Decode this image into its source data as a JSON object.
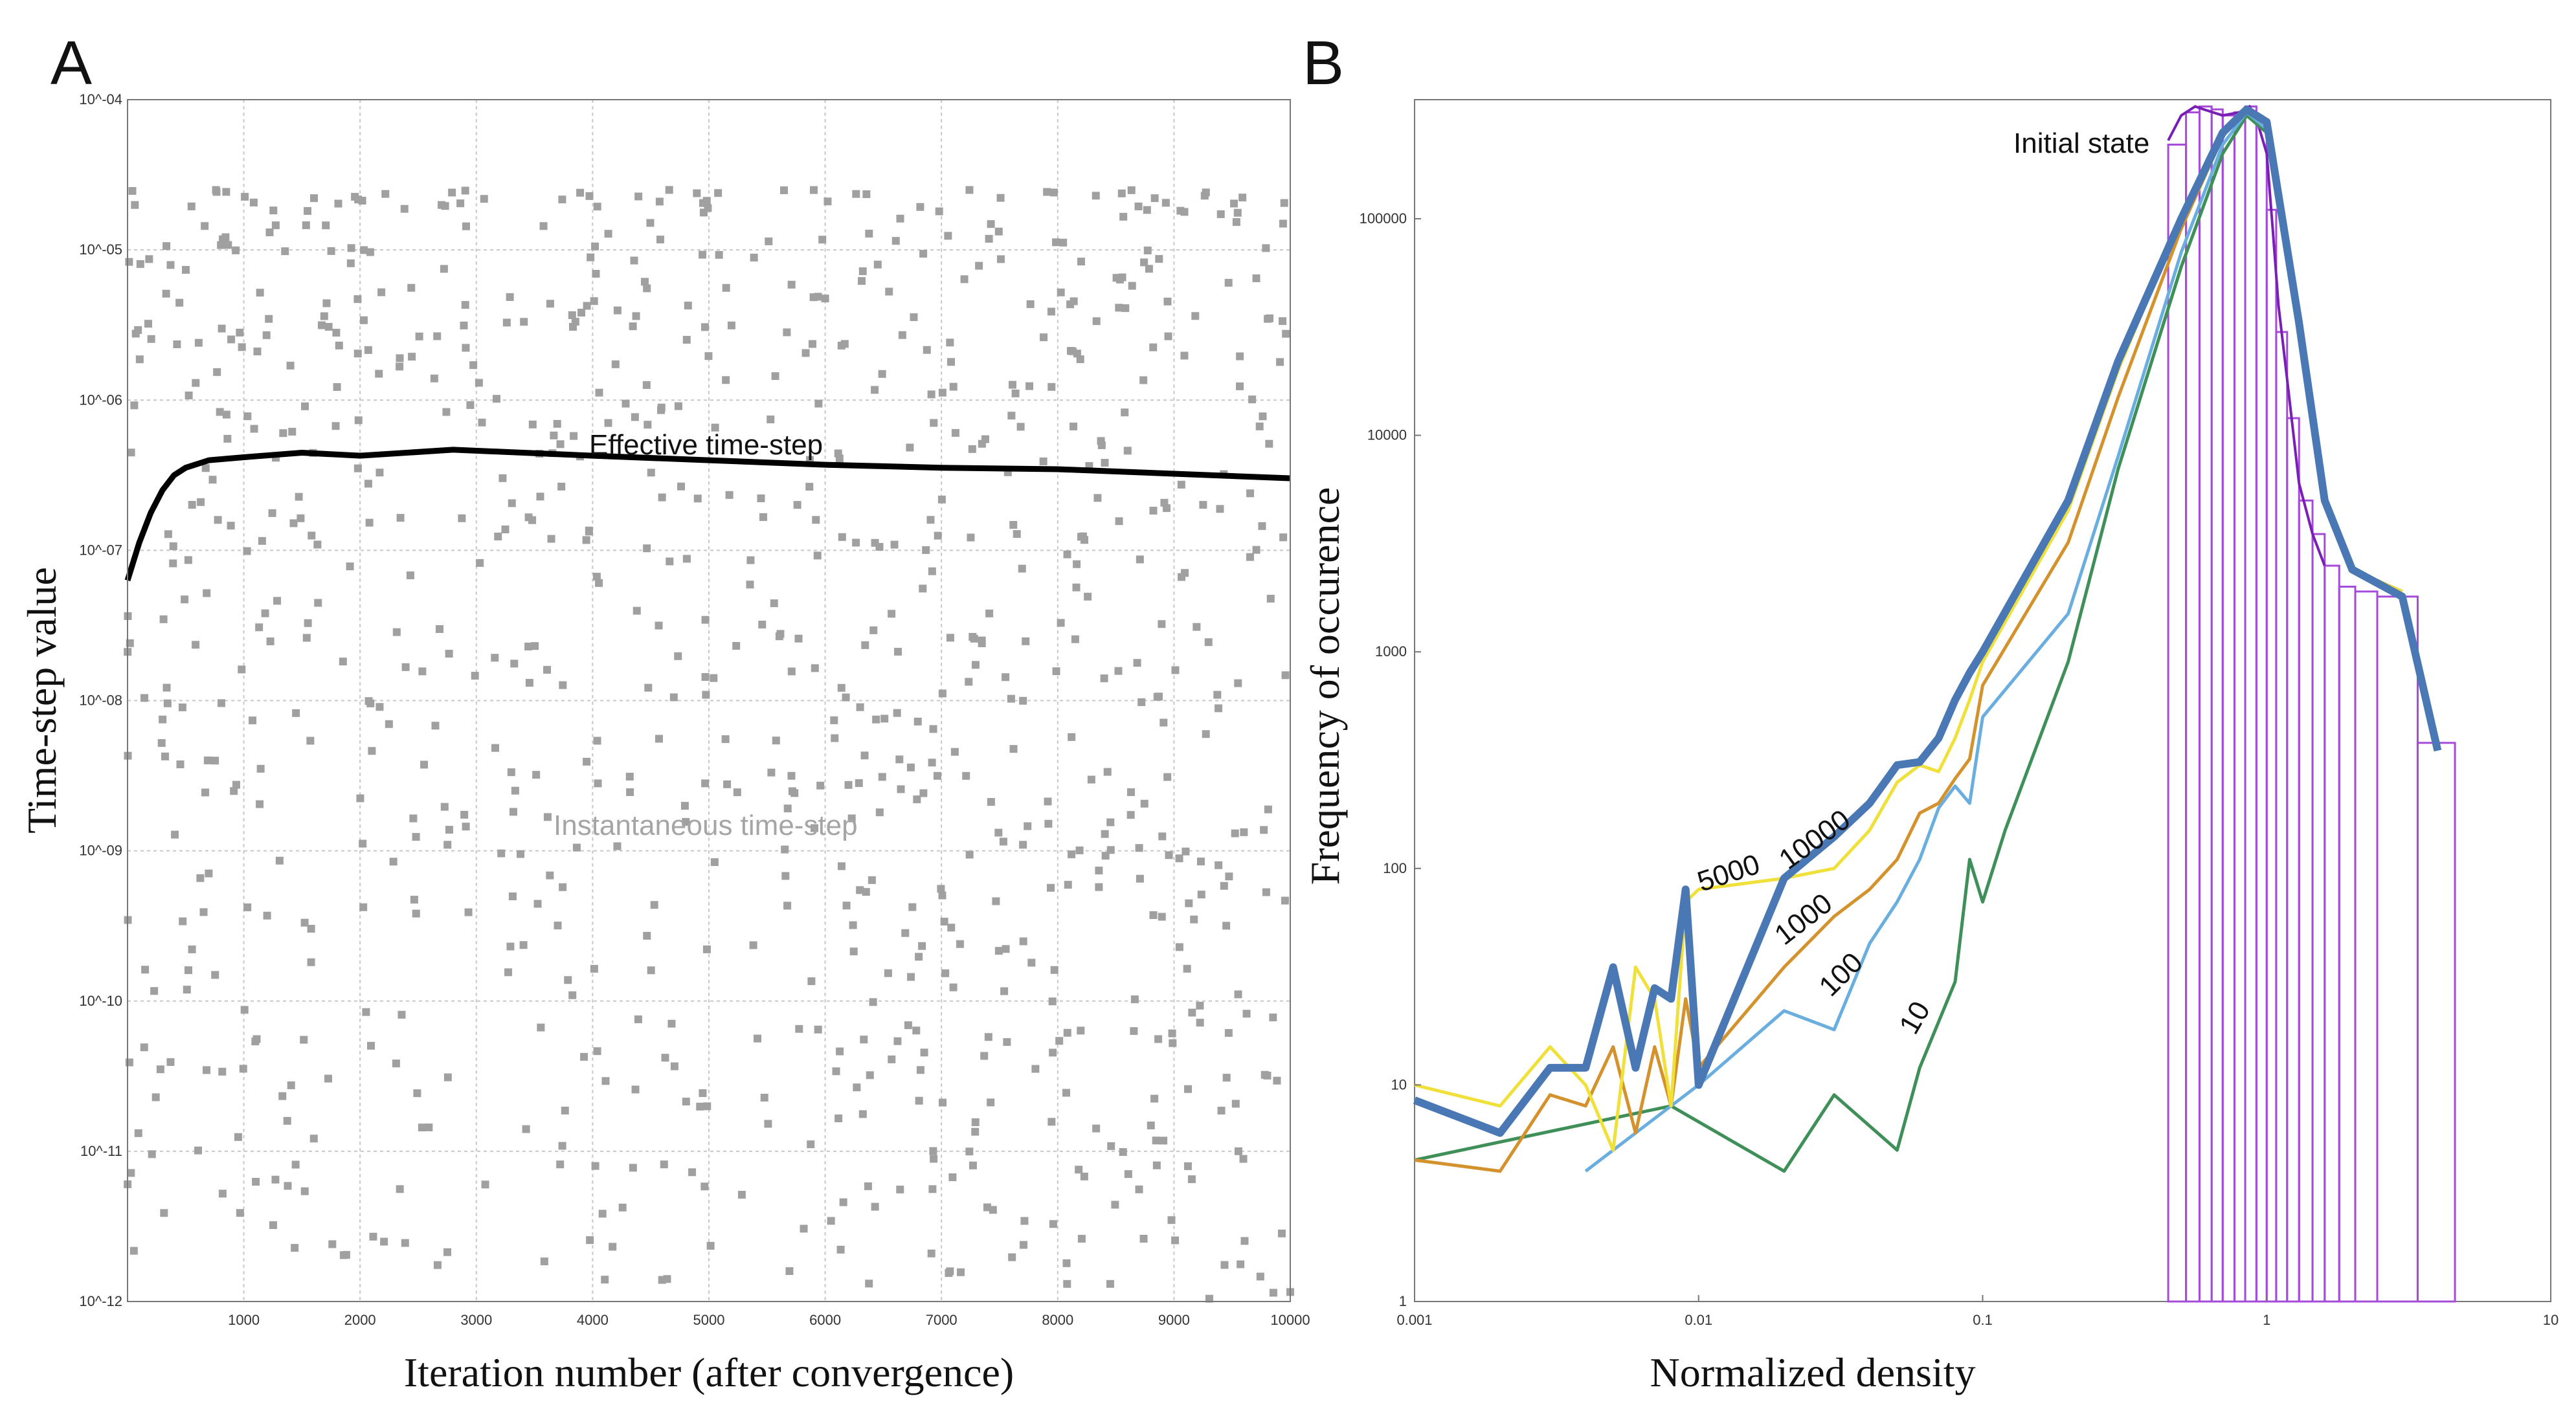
{
  "chart_data": [
    {
      "panel": "A",
      "type": "scatter",
      "xlabel": "Iteration  number (after convergence)",
      "ylabel": "Time-step  value",
      "xlim": [
        0,
        10000
      ],
      "ylim_log10": [
        -12,
        -4
      ],
      "x_ticks": [
        1000,
        2000,
        3000,
        4000,
        5000,
        6000,
        7000,
        8000,
        9000,
        10000
      ],
      "y_tick_labels": [
        "10^-04",
        "10^-05",
        "10^-06",
        "10^-07",
        "10^-08",
        "10^-09",
        "10^-10",
        "10^-11",
        "10^-12"
      ],
      "y_tick_exponents": [
        -4,
        -5,
        -6,
        -7,
        -8,
        -9,
        -10,
        -11,
        -12
      ],
      "colors": {
        "effective": "#000000",
        "instantaneous": "#a0a0a0"
      },
      "series": [
        {
          "name": "Effective time-step",
          "style": "line",
          "x": [
            0,
            100,
            200,
            300,
            400,
            500,
            700,
            1000,
            1500,
            2000,
            2800,
            4000,
            5000,
            6000,
            7000,
            8000,
            9000,
            10000
          ],
          "y_log10": [
            -7.2,
            -6.95,
            -6.75,
            -6.6,
            -6.5,
            -6.45,
            -6.4,
            -6.38,
            -6.35,
            -6.37,
            -6.33,
            -6.37,
            -6.4,
            -6.43,
            -6.45,
            -6.46,
            -6.49,
            -6.52
          ]
        },
        {
          "name": "Instantaneous time-step",
          "style": "scatter",
          "count": 900,
          "x_range": [
            0,
            10000
          ],
          "y_log10_range": [
            -12,
            -4.6
          ]
        }
      ]
    },
    {
      "panel": "B",
      "type": "line",
      "xlabel": "Normalized density",
      "ylabel": "Frequency  of  occurence",
      "x_log10_range": [
        -3,
        1
      ],
      "y_log10_range": [
        0,
        5.55
      ],
      "x_tick_labels": [
        "0.001",
        "0.01",
        "0.1",
        "1",
        "10"
      ],
      "y_tick_labels": [
        "1",
        "10",
        "100",
        "1000",
        "10000",
        "100000"
      ],
      "annotations": {
        "initial_state": "Initial state"
      },
      "colors": {
        "histogram": "#a64ad9",
        "initial": "#7a1fb5"
      },
      "histogram_bins": [
        {
          "x0": 0.45,
          "x1": 0.52,
          "y": 220000
        },
        {
          "x0": 0.52,
          "x1": 0.58,
          "y": 310000
        },
        {
          "x0": 0.58,
          "x1": 0.64,
          "y": 330000
        },
        {
          "x0": 0.64,
          "x1": 0.7,
          "y": 320000
        },
        {
          "x0": 0.7,
          "x1": 0.77,
          "y": 300000
        },
        {
          "x0": 0.77,
          "x1": 0.84,
          "y": 310000
        },
        {
          "x0": 0.84,
          "x1": 0.92,
          "y": 330000
        },
        {
          "x0": 0.92,
          "x1": 1.0,
          "y": 280000
        },
        {
          "x0": 1.0,
          "x1": 1.08,
          "y": 110000
        },
        {
          "x0": 1.08,
          "x1": 1.18,
          "y": 30000
        },
        {
          "x0": 1.18,
          "x1": 1.3,
          "y": 12000
        },
        {
          "x0": 1.3,
          "x1": 1.45,
          "y": 5000
        },
        {
          "x0": 1.45,
          "x1": 1.6,
          "y": 3500
        },
        {
          "x0": 1.6,
          "x1": 1.8,
          "y": 2500
        },
        {
          "x0": 1.8,
          "x1": 2.05,
          "y": 2000
        },
        {
          "x0": 2.05,
          "x1": 2.45,
          "y": 1900
        },
        {
          "x0": 2.45,
          "x1": 3.4,
          "y": 1800
        },
        {
          "x0": 3.4,
          "x1": 4.6,
          "y": 380
        }
      ],
      "initial_curve": {
        "x": [
          0.45,
          0.5,
          0.56,
          0.6,
          0.7,
          0.8,
          0.87,
          0.92,
          1.0,
          1.05,
          1.1,
          1.2,
          1.3,
          1.45,
          1.6
        ],
        "y": [
          230000,
          300000,
          330000,
          320000,
          300000,
          310000,
          330000,
          290000,
          200000,
          90000,
          40000,
          15000,
          6000,
          3500,
          2500
        ]
      },
      "series": [
        {
          "name": "10",
          "label": "10",
          "color": "#3e8f58",
          "width": 5,
          "x": [
            0.001,
            0.008,
            0.02,
            0.03,
            0.05,
            0.06,
            0.08,
            0.09,
            0.1,
            0.12,
            0.2,
            0.3,
            0.5,
            0.7,
            0.85,
            1.0,
            1.3,
            1.6,
            2.0,
            3.0
          ],
          "y": [
            4.5,
            8,
            4,
            9,
            5,
            12,
            30,
            110,
            70,
            150,
            900,
            7000,
            60000,
            200000,
            300000,
            250000,
            30000,
            5000,
            2400,
            1900
          ]
        },
        {
          "name": "100",
          "label": "100",
          "color": "#6aaee0",
          "width": 5,
          "x": [
            0.004,
            0.008,
            0.01,
            0.02,
            0.03,
            0.04,
            0.05,
            0.06,
            0.07,
            0.08,
            0.09,
            0.1,
            0.2,
            0.3,
            0.5,
            0.7,
            0.85,
            1.0,
            1.3,
            1.6,
            2.0,
            3.0
          ],
          "y": [
            4,
            8,
            10,
            22,
            18,
            45,
            70,
            110,
            190,
            240,
            200,
            500,
            1500,
            8000,
            70000,
            220000,
            310000,
            260000,
            32000,
            5200,
            2400,
            1900
          ]
        },
        {
          "name": "1000",
          "label": "1000",
          "color": "#d4922c",
          "width": 5,
          "x": [
            0.001,
            0.002,
            0.003,
            0.004,
            0.005,
            0.006,
            0.007,
            0.008,
            0.009,
            0.01,
            0.02,
            0.03,
            0.04,
            0.05,
            0.06,
            0.07,
            0.08,
            0.09,
            0.1,
            0.2,
            0.3,
            0.5,
            0.7,
            0.85,
            1.0,
            1.3,
            1.6,
            2.0,
            3.0
          ],
          "y": [
            4.5,
            4,
            9,
            8,
            15,
            6,
            15,
            8,
            25,
            12,
            35,
            60,
            80,
            110,
            180,
            200,
            260,
            320,
            700,
            3200,
            15000,
            90000,
            240000,
            320000,
            270000,
            33000,
            5200,
            2400,
            1900
          ]
        },
        {
          "name": "5000",
          "label": "5000",
          "color": "#f0e03a",
          "width": 5,
          "x": [
            0.001,
            0.002,
            0.003,
            0.004,
            0.005,
            0.006,
            0.007,
            0.008,
            0.009,
            0.01,
            0.02,
            0.03,
            0.04,
            0.05,
            0.06,
            0.07,
            0.08,
            0.09,
            0.1,
            0.2,
            0.3,
            0.5,
            0.7,
            0.85,
            1.0,
            1.3,
            1.6,
            2.0,
            3.0
          ],
          "y": [
            10,
            8,
            15,
            10,
            5,
            35,
            25,
            8,
            70,
            80,
            90,
            100,
            150,
            250,
            300,
            280,
            400,
            600,
            900,
            4500,
            20000,
            100000,
            250000,
            320000,
            270000,
            33000,
            5200,
            2400,
            1900
          ]
        },
        {
          "name": "10000",
          "label": "10000",
          "color": "#4a78b4",
          "width": 12,
          "x": [
            0.001,
            0.002,
            0.003,
            0.004,
            0.005,
            0.006,
            0.007,
            0.008,
            0.009,
            0.01,
            0.02,
            0.03,
            0.04,
            0.05,
            0.06,
            0.07,
            0.08,
            0.09,
            0.1,
            0.2,
            0.3,
            0.5,
            0.7,
            0.85,
            1.0,
            1.3,
            1.6,
            2.0,
            3.0,
            4.0
          ],
          "y": [
            8.5,
            6,
            12,
            12,
            35,
            12,
            28,
            25,
            80,
            10,
            90,
            140,
            200,
            300,
            310,
            400,
            600,
            800,
            1000,
            5000,
            22000,
            100000,
            250000,
            320000,
            280000,
            33000,
            5000,
            2400,
            1800,
            350
          ]
        }
      ]
    }
  ],
  "panels": {
    "A": {
      "letter": "A",
      "effective_label": "Effective time-step",
      "instantaneous_label": "Instantaneous time-step"
    },
    "B": {
      "letter": "B"
    }
  }
}
